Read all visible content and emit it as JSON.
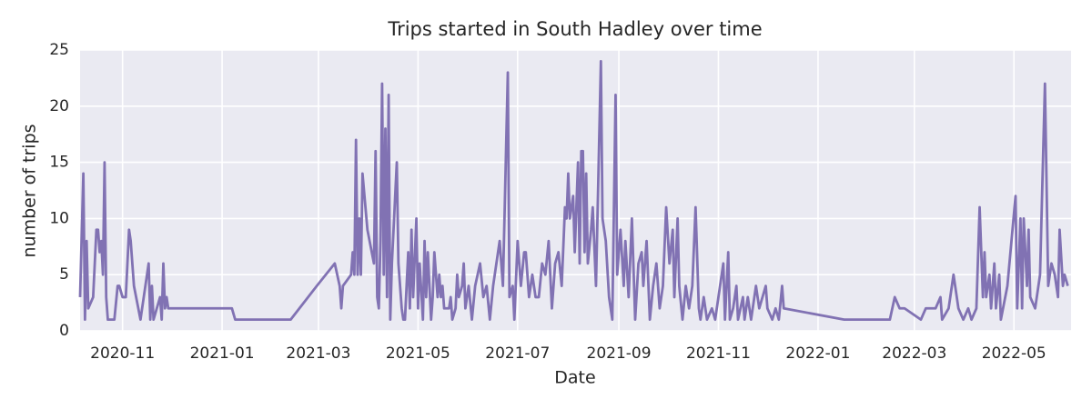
{
  "chart_data": {
    "type": "line",
    "title": "Trips started in South Hadley over time",
    "x_label": "Date",
    "y_label": "number of trips",
    "color": "#8172b3",
    "grid": true,
    "xlim": [
      "2020-10-06",
      "2022-06-05"
    ],
    "xticks": [
      {
        "value": "2020-11-01",
        "label": "2020-11"
      },
      {
        "value": "2021-01-01",
        "label": "2021-01"
      },
      {
        "value": "2021-03-01",
        "label": "2021-03"
      },
      {
        "value": "2021-05-01",
        "label": "2021-05"
      },
      {
        "value": "2021-07-01",
        "label": "2021-07"
      },
      {
        "value": "2021-09-01",
        "label": "2021-09"
      },
      {
        "value": "2021-11-01",
        "label": "2021-11"
      },
      {
        "value": "2022-01-01",
        "label": "2022-01"
      },
      {
        "value": "2022-03-01",
        "label": "2022-03"
      },
      {
        "value": "2022-05-01",
        "label": "2022-05"
      }
    ],
    "ylim": [
      0,
      25
    ],
    "yticks": [
      0,
      5,
      10,
      15,
      20,
      25
    ],
    "x": [
      "2020-10-06",
      "2020-10-08",
      "2020-10-09",
      "2020-10-10",
      "2020-10-11",
      "2020-10-14",
      "2020-10-16",
      "2020-10-17",
      "2020-10-18",
      "2020-10-19",
      "2020-10-20",
      "2020-10-21",
      "2020-10-22",
      "2020-10-23",
      "2020-10-27",
      "2020-10-29",
      "2020-10-30",
      "2020-11-01",
      "2020-11-03",
      "2020-11-05",
      "2020-11-06",
      "2020-11-08",
      "2020-11-12",
      "2020-11-15",
      "2020-11-17",
      "2020-11-18",
      "2020-11-19",
      "2020-11-20",
      "2020-11-24",
      "2020-11-25",
      "2020-11-26",
      "2020-11-27",
      "2020-11-28",
      "2020-11-29",
      "2021-01-07",
      "2021-01-09",
      "2021-02-12",
      "2021-02-28",
      "2021-03-11",
      "2021-03-14",
      "2021-03-15",
      "2021-03-16",
      "2021-03-21",
      "2021-03-22",
      "2021-03-23",
      "2021-03-24",
      "2021-03-25",
      "2021-03-26",
      "2021-03-27",
      "2021-03-28",
      "2021-03-31",
      "2021-04-04",
      "2021-04-05",
      "2021-04-06",
      "2021-04-07",
      "2021-04-08",
      "2021-04-09",
      "2021-04-10",
      "2021-04-11",
      "2021-04-12",
      "2021-04-13",
      "2021-04-14",
      "2021-04-15",
      "2021-04-18",
      "2021-04-19",
      "2021-04-21",
      "2021-04-22",
      "2021-04-23",
      "2021-04-25",
      "2021-04-26",
      "2021-04-27",
      "2021-04-28",
      "2021-04-30",
      "2021-05-01",
      "2021-05-02",
      "2021-05-04",
      "2021-05-05",
      "2021-05-06",
      "2021-05-07",
      "2021-05-09",
      "2021-05-10",
      "2021-05-11",
      "2021-05-13",
      "2021-05-14",
      "2021-05-15",
      "2021-05-16",
      "2021-05-17",
      "2021-05-20",
      "2021-05-21",
      "2021-05-22",
      "2021-05-24",
      "2021-05-25",
      "2021-05-26",
      "2021-05-28",
      "2021-05-29",
      "2021-05-30",
      "2021-06-01",
      "2021-06-03",
      "2021-06-05",
      "2021-06-08",
      "2021-06-10",
      "2021-06-12",
      "2021-06-14",
      "2021-06-16",
      "2021-06-18",
      "2021-06-20",
      "2021-06-22",
      "2021-06-25",
      "2021-06-26",
      "2021-06-28",
      "2021-06-29",
      "2021-07-01",
      "2021-07-03",
      "2021-07-05",
      "2021-07-06",
      "2021-07-08",
      "2021-07-10",
      "2021-07-12",
      "2021-07-14",
      "2021-07-16",
      "2021-07-18",
      "2021-07-20",
      "2021-07-22",
      "2021-07-24",
      "2021-07-26",
      "2021-07-28",
      "2021-07-30",
      "2021-07-31",
      "2021-08-01",
      "2021-08-02",
      "2021-08-04",
      "2021-08-05",
      "2021-08-07",
      "2021-08-08",
      "2021-08-09",
      "2021-08-10",
      "2021-08-11",
      "2021-08-12",
      "2021-08-13",
      "2021-08-15",
      "2021-08-16",
      "2021-08-18",
      "2021-08-21",
      "2021-08-22",
      "2021-08-24",
      "2021-08-26",
      "2021-08-28",
      "2021-08-30",
      "2021-08-31",
      "2021-09-02",
      "2021-09-04",
      "2021-09-05",
      "2021-09-07",
      "2021-09-09",
      "2021-09-11",
      "2021-09-13",
      "2021-09-15",
      "2021-09-16",
      "2021-09-18",
      "2021-09-20",
      "2021-09-22",
      "2021-09-24",
      "2021-09-26",
      "2021-09-28",
      "2021-09-30",
      "2021-10-02",
      "2021-10-04",
      "2021-10-05",
      "2021-10-07",
      "2021-10-08",
      "2021-10-10",
      "2021-10-12",
      "2021-10-14",
      "2021-10-16",
      "2021-10-18",
      "2021-10-20",
      "2021-10-21",
      "2021-10-23",
      "2021-10-25",
      "2021-10-28",
      "2021-10-30",
      "2021-11-04",
      "2021-11-05",
      "2021-11-07",
      "2021-11-08",
      "2021-11-10",
      "2021-11-12",
      "2021-11-13",
      "2021-11-16",
      "2021-11-17",
      "2021-11-19",
      "2021-11-21",
      "2021-11-24",
      "2021-11-26",
      "2021-11-28",
      "2021-11-30",
      "2021-12-01",
      "2021-12-04",
      "2021-12-06",
      "2021-12-08",
      "2021-12-10",
      "2021-12-11",
      "2022-01-17",
      "2022-02-14",
      "2022-02-17",
      "2022-02-20",
      "2022-02-23",
      "2022-03-05",
      "2022-03-08",
      "2022-03-14",
      "2022-03-17",
      "2022-03-18",
      "2022-03-22",
      "2022-03-25",
      "2022-03-28",
      "2022-03-31",
      "2022-04-03",
      "2022-04-05",
      "2022-04-08",
      "2022-04-10",
      "2022-04-12",
      "2022-04-13",
      "2022-04-14",
      "2022-04-16",
      "2022-04-17",
      "2022-04-19",
      "2022-04-20",
      "2022-04-22",
      "2022-04-23",
      "2022-04-27",
      "2022-05-02",
      "2022-05-03",
      "2022-05-05",
      "2022-05-06",
      "2022-05-07",
      "2022-05-09",
      "2022-05-10",
      "2022-05-11",
      "2022-05-14",
      "2022-05-17",
      "2022-05-20",
      "2022-05-22",
      "2022-05-24",
      "2022-05-26",
      "2022-05-28",
      "2022-05-29",
      "2022-05-31",
      "2022-06-01",
      "2022-06-03"
    ],
    "values": [
      3,
      14,
      1,
      8,
      2,
      3,
      9,
      9,
      7,
      8,
      5,
      15,
      3,
      1,
      1,
      4,
      4,
      3,
      3,
      9,
      8,
      4,
      1,
      4,
      6,
      1,
      4,
      1,
      3,
      1,
      6,
      2,
      3,
      2,
      2,
      1,
      1,
      4,
      6,
      4,
      2,
      4,
      5,
      7,
      5,
      17,
      5,
      10,
      5,
      14,
      9,
      6,
      16,
      3,
      2,
      8,
      22,
      5,
      18,
      3,
      21,
      1,
      6,
      15,
      6,
      2,
      1,
      1,
      7,
      2,
      9,
      3,
      10,
      2,
      6,
      1,
      8,
      3,
      7,
      1,
      3,
      7,
      3,
      5,
      3,
      4,
      2,
      2,
      3,
      1,
      2,
      5,
      3,
      4,
      6,
      2,
      4,
      1,
      4,
      6,
      3,
      4,
      1,
      4,
      6,
      8,
      4,
      23,
      3,
      4,
      1,
      8,
      4,
      7,
      7,
      3,
      5,
      3,
      3,
      6,
      5,
      8,
      2,
      6,
      7,
      4,
      11,
      10,
      14,
      10,
      12,
      7,
      15,
      6,
      16,
      16,
      7,
      14,
      6,
      9,
      11,
      4,
      24,
      10,
      8,
      3,
      1,
      21,
      5,
      9,
      4,
      8,
      3,
      10,
      1,
      6,
      7,
      4,
      8,
      1,
      4,
      6,
      2,
      4,
      11,
      6,
      9,
      3,
      10,
      4,
      1,
      4,
      2,
      4,
      11,
      2,
      1,
      3,
      1,
      2,
      1,
      6,
      1,
      7,
      1,
      2,
      4,
      1,
      3,
      1,
      3,
      1,
      4,
      2,
      3,
      4,
      2,
      1,
      2,
      1,
      4,
      2,
      1,
      1,
      3,
      2,
      2,
      1,
      2,
      2,
      3,
      1,
      2,
      5,
      2,
      1,
      2,
      1,
      2,
      11,
      3,
      7,
      3,
      5,
      2,
      6,
      2,
      5,
      1,
      4,
      12,
      2,
      10,
      2,
      10,
      4,
      9,
      3,
      2,
      5,
      22,
      4,
      6,
      5,
      3,
      9,
      4,
      5,
      4
    ]
  }
}
